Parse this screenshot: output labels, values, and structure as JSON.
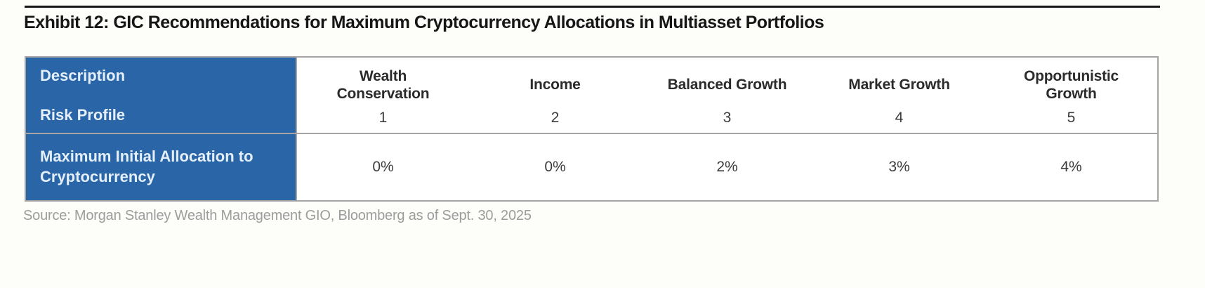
{
  "title": "Exhibit 12: GIC Recommendations for Maximum Cryptocurrency Allocations in Multiasset Portfolios",
  "table": {
    "corner": {
      "description_label": "Description",
      "risk_profile_label": "Risk Profile"
    },
    "allocation_row_label": "Maximum Initial Allocation to Cryptocurrency",
    "columns": [
      {
        "name": "Wealth Conservation",
        "risk_profile": "1",
        "max_allocation": "0%"
      },
      {
        "name": "Income",
        "risk_profile": "2",
        "max_allocation": "0%"
      },
      {
        "name": "Balanced Growth",
        "risk_profile": "3",
        "max_allocation": "2%"
      },
      {
        "name": "Market Growth",
        "risk_profile": "4",
        "max_allocation": "3%"
      },
      {
        "name": "Opportunistic Growth",
        "risk_profile": "5",
        "max_allocation": "4%"
      }
    ]
  },
  "source": "Source: Morgan Stanley Wealth Management GIO, Bloomberg as of Sept. 30, 2025",
  "colors": {
    "header_blue": "#2A65A8",
    "header_text": "#E4EFF9",
    "border_gray": "#A5A5A5",
    "title_black": "#161616",
    "body_text": "#3C3C3C",
    "source_gray": "#9C9C9C",
    "page_bg": "#FDFDFA"
  }
}
